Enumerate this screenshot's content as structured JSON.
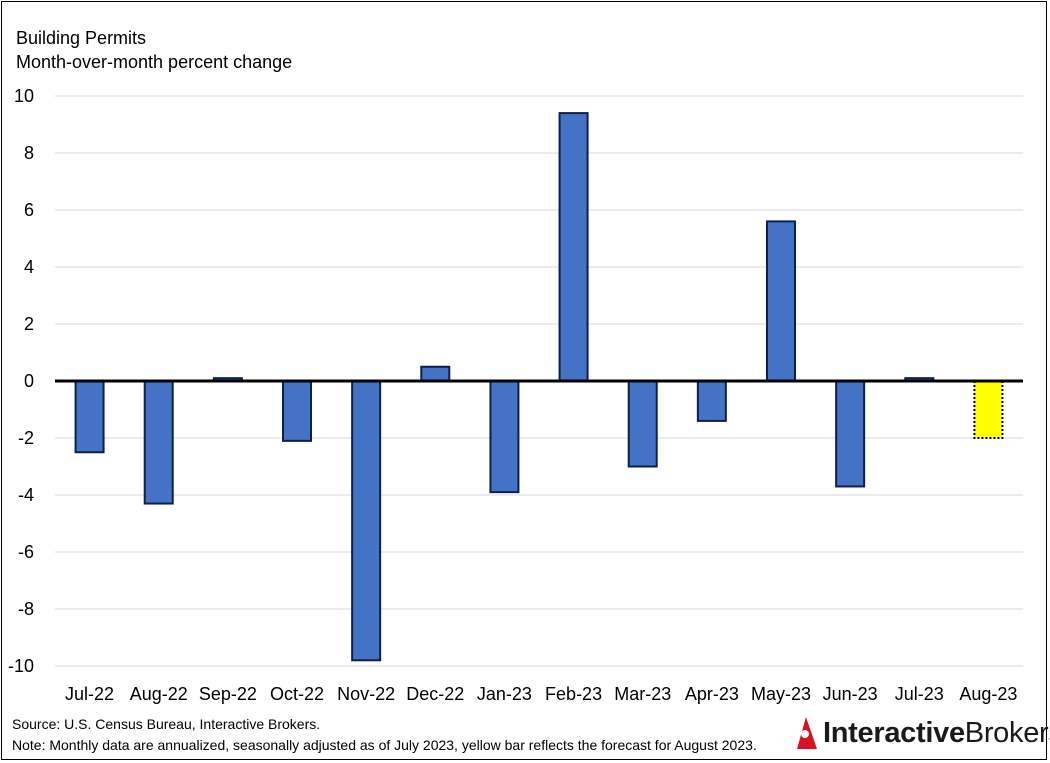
{
  "chart_data": {
    "type": "bar",
    "title": "Building Permits",
    "subtitle": "Month-over-month percent change",
    "categories": [
      "Jul-22",
      "Aug-22",
      "Sep-22",
      "Oct-22",
      "Nov-22",
      "Dec-22",
      "Jan-23",
      "Feb-23",
      "Mar-23",
      "Apr-23",
      "May-23",
      "Jun-23",
      "Jul-23",
      "Aug-23"
    ],
    "values": [
      -2.5,
      -4.3,
      0.1,
      -2.1,
      -9.8,
      0.5,
      -3.9,
      9.4,
      -3.0,
      -1.4,
      5.6,
      -3.7,
      0.1,
      -2.0
    ],
    "forecast_index": 13,
    "ylim": [
      -10,
      10
    ],
    "yticks": [
      10,
      8,
      6,
      4,
      2,
      0,
      -2,
      -4,
      -6,
      -8,
      -10
    ],
    "grid": true,
    "bar_color": "#4472C4",
    "bar_edge_color": "#0D1F4D",
    "forecast_color": "#FFFF00",
    "forecast_edge_color": "#000000"
  },
  "footer": {
    "source": "Source: U.S. Census Bureau, Interactive Brokers.",
    "note": "Note: Monthly data are annualized, seasonally adjusted as of July 2023, yellow bar reflects the forecast for August 2023."
  },
  "brand": {
    "name_part1": "Interactive",
    "name_part2": "Brokers",
    "logo_icon": "interactive-brokers-logo-icon",
    "logo_color": "#D81222"
  }
}
